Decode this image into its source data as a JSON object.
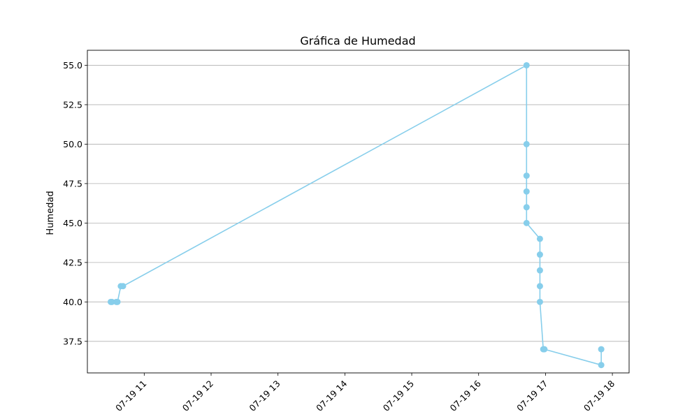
{
  "chart_data": {
    "type": "line",
    "title": "Gráfica de Humedad",
    "xlabel": "",
    "ylabel": "Humedad",
    "x_axis": {
      "kind": "time",
      "range": [
        "07-19 10:09",
        "07-19 18:15"
      ],
      "ticks": [
        "07-19 11:00",
        "07-19 12:00",
        "07-19 13:00",
        "07-19 14:00",
        "07-19 15:00",
        "07-19 16:00",
        "07-19 17:00",
        "07-19 18:00"
      ],
      "tick_labels": [
        "07-19 11",
        "07-19 12",
        "07-19 13",
        "07-19 14",
        "07-19 15",
        "07-19 16",
        "07-19 17",
        "07-19 18"
      ]
    },
    "ylim": [
      35.5,
      55.95
    ],
    "y_ticks": [
      37.5,
      40.0,
      42.5,
      45.0,
      47.5,
      50.0,
      52.5,
      55.0
    ],
    "y_tick_labels": [
      "37.5",
      "40.0",
      "42.5",
      "45.0",
      "47.5",
      "50.0",
      "52.5",
      "55.0"
    ],
    "grid": "y",
    "series": [
      {
        "color": "#87CEEB",
        "marker": "circle",
        "points": [
          {
            "x": "07-19 10:30",
            "y": 40
          },
          {
            "x": "07-19 10:31",
            "y": 40
          },
          {
            "x": "07-19 10:35",
            "y": 40
          },
          {
            "x": "07-19 10:36",
            "y": 40
          },
          {
            "x": "07-19 10:39",
            "y": 41
          },
          {
            "x": "07-19 10:41",
            "y": 41
          },
          {
            "x": "07-19 16:43",
            "y": 55
          },
          {
            "x": "07-19 16:43",
            "y": 50
          },
          {
            "x": "07-19 16:43",
            "y": 48
          },
          {
            "x": "07-19 16:43",
            "y": 47
          },
          {
            "x": "07-19 16:43",
            "y": 46
          },
          {
            "x": "07-19 16:43",
            "y": 45
          },
          {
            "x": "07-19 16:55",
            "y": 44
          },
          {
            "x": "07-19 16:55",
            "y": 43
          },
          {
            "x": "07-19 16:55",
            "y": 42
          },
          {
            "x": "07-19 16:55",
            "y": 41
          },
          {
            "x": "07-19 16:55",
            "y": 40
          },
          {
            "x": "07-19 16:58",
            "y": 37
          },
          {
            "x": "07-19 16:59",
            "y": 37
          },
          {
            "x": "07-19 17:50",
            "y": 36
          },
          {
            "x": "07-19 17:50",
            "y": 37
          }
        ]
      }
    ]
  }
}
